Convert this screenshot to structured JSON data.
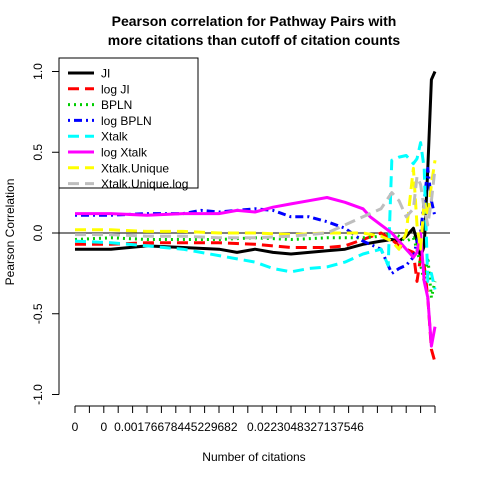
{
  "chart_data": {
    "type": "line",
    "title_lines": [
      "Pearson correlation for Pathway Pairs with",
      "more citations than cutoff of citation counts"
    ],
    "xlabel": "Number of citations",
    "ylabel": "Pearson Correlation",
    "ylim": [
      -1.0,
      1.0
    ],
    "yticks": [
      {
        "value": 1.0,
        "label": "1.0"
      },
      {
        "value": 0.5,
        "label": "0.5"
      },
      {
        "value": 0.0,
        "label": "0.0"
      },
      {
        "value": -0.5,
        "label": "-0.5"
      },
      {
        "value": -1.0,
        "label": "-1.0"
      }
    ],
    "xlim": [
      0,
      100
    ],
    "xtick_positions": [
      0,
      4,
      8,
      12,
      16,
      20,
      24,
      28,
      32,
      36,
      40,
      44,
      48,
      52,
      56,
      60,
      64,
      68,
      72,
      76,
      80,
      84,
      88,
      92,
      96,
      100
    ],
    "xtick_labels": [
      {
        "value": 0,
        "label": "0"
      },
      {
        "value": 8,
        "label": "0"
      },
      {
        "value": 28,
        "label": "0.00176678445229682"
      },
      {
        "value": 64,
        "label": "0.0223048327137546"
      }
    ],
    "hline": 0,
    "legend_position": "top-left",
    "series": [
      {
        "name": "JI",
        "color": "#000000",
        "dash": "solid",
        "x": [
          0,
          10,
          20,
          30,
          40,
          45,
          50,
          55,
          60,
          65,
          70,
          75,
          80,
          85,
          88,
          90,
          92,
          94,
          95,
          96,
          97,
          98,
          99,
          100
        ],
        "y": [
          -0.1,
          -0.1,
          -0.08,
          -0.09,
          -0.1,
          -0.12,
          -0.1,
          -0.12,
          -0.13,
          -0.12,
          -0.11,
          -0.1,
          -0.07,
          -0.05,
          -0.04,
          -0.05,
          -0.02,
          0.03,
          -0.05,
          -0.15,
          -0.08,
          0.4,
          0.95,
          1.0
        ]
      },
      {
        "name": "log JI",
        "color": "#ff0000",
        "dash": "longdash",
        "x": [
          0,
          10,
          20,
          30,
          40,
          50,
          60,
          70,
          75,
          80,
          85,
          88,
          90,
          92,
          94,
          95,
          96,
          97,
          98,
          99,
          100
        ],
        "y": [
          -0.07,
          -0.07,
          -0.06,
          -0.06,
          -0.06,
          -0.07,
          -0.09,
          -0.09,
          -0.08,
          -0.04,
          0.0,
          -0.04,
          -0.08,
          -0.1,
          -0.12,
          -0.3,
          -0.15,
          -0.2,
          -0.4,
          -0.72,
          -0.8
        ]
      },
      {
        "name": "BPLN",
        "color": "#00cd00",
        "dash": "dotted",
        "x": [
          0,
          10,
          20,
          30,
          40,
          50,
          60,
          70,
          80,
          85,
          88,
          90,
          92,
          94,
          95,
          96,
          97,
          98,
          99,
          100
        ],
        "y": [
          -0.04,
          -0.03,
          -0.04,
          -0.04,
          -0.04,
          -0.03,
          -0.04,
          -0.03,
          -0.03,
          -0.02,
          0.0,
          -0.02,
          -0.05,
          -0.03,
          -0.1,
          -0.2,
          -0.3,
          -0.15,
          -0.4,
          -0.3
        ]
      },
      {
        "name": "log BPLN",
        "color": "#0000ff",
        "dash": "dotdash",
        "x": [
          0,
          10,
          20,
          30,
          35,
          40,
          45,
          50,
          55,
          60,
          65,
          70,
          75,
          80,
          85,
          88,
          90,
          92,
          94,
          95,
          96,
          97,
          98,
          99,
          100
        ],
        "y": [
          0.11,
          0.11,
          0.12,
          0.12,
          0.14,
          0.13,
          0.14,
          0.15,
          0.14,
          0.1,
          0.1,
          0.07,
          0.03,
          -0.05,
          -0.1,
          -0.25,
          -0.22,
          -0.2,
          -0.15,
          -0.05,
          0.0,
          0.2,
          0.4,
          0.2,
          0.1
        ]
      },
      {
        "name": "Xtalk",
        "color": "#00ffff",
        "dash": "longdash",
        "x": [
          0,
          10,
          20,
          30,
          40,
          50,
          55,
          60,
          65,
          70,
          75,
          80,
          85,
          87,
          88,
          90,
          92,
          94,
          95,
          96,
          97,
          98,
          99,
          100
        ],
        "y": [
          -0.05,
          -0.06,
          -0.08,
          -0.1,
          -0.14,
          -0.18,
          -0.22,
          -0.24,
          -0.22,
          -0.21,
          -0.18,
          -0.13,
          -0.1,
          -0.2,
          0.45,
          0.47,
          0.48,
          0.43,
          0.46,
          0.56,
          0.4,
          -0.3,
          -0.25,
          -0.35
        ]
      },
      {
        "name": "log Xtalk",
        "color": "#ff00ff",
        "dash": "solid",
        "x": [
          0,
          10,
          20,
          30,
          40,
          45,
          50,
          55,
          60,
          65,
          70,
          75,
          80,
          82,
          85,
          88,
          90,
          92,
          94,
          95,
          96,
          97,
          98,
          99,
          100
        ],
        "y": [
          0.12,
          0.12,
          0.11,
          0.12,
          0.12,
          0.14,
          0.13,
          0.16,
          0.18,
          0.2,
          0.22,
          0.19,
          0.15,
          0.1,
          0.05,
          0.0,
          -0.05,
          -0.1,
          -0.15,
          -0.12,
          0.0,
          -0.3,
          -0.4,
          -0.7,
          -0.58
        ]
      },
      {
        "name": "Xtalk.Unique",
        "color": "#ffff00",
        "dash": "longdash",
        "x": [
          0,
          10,
          20,
          30,
          40,
          50,
          60,
          70,
          80,
          85,
          88,
          90,
          92,
          94,
          95,
          96,
          97,
          98,
          99,
          100
        ],
        "y": [
          0.02,
          0.02,
          0.01,
          0.01,
          0.0,
          0.0,
          -0.01,
          0.0,
          0.0,
          -0.02,
          -0.05,
          -0.1,
          0.0,
          0.4,
          0.05,
          -0.1,
          0.2,
          0.1,
          0.3,
          0.45
        ]
      },
      {
        "name": "Xtalk.Unique.log",
        "color": "#bebebe",
        "dash": "longdash",
        "x": [
          0,
          10,
          20,
          30,
          40,
          50,
          60,
          70,
          80,
          85,
          88,
          90,
          92,
          94,
          95,
          96,
          97,
          98,
          99,
          100
        ],
        "y": [
          -0.01,
          -0.01,
          -0.02,
          -0.02,
          -0.03,
          -0.03,
          -0.02,
          0.0,
          0.1,
          0.15,
          0.25,
          0.2,
          0.1,
          0.15,
          0.35,
          0.3,
          0.15,
          0.05,
          0.2,
          0.4
        ]
      }
    ]
  }
}
